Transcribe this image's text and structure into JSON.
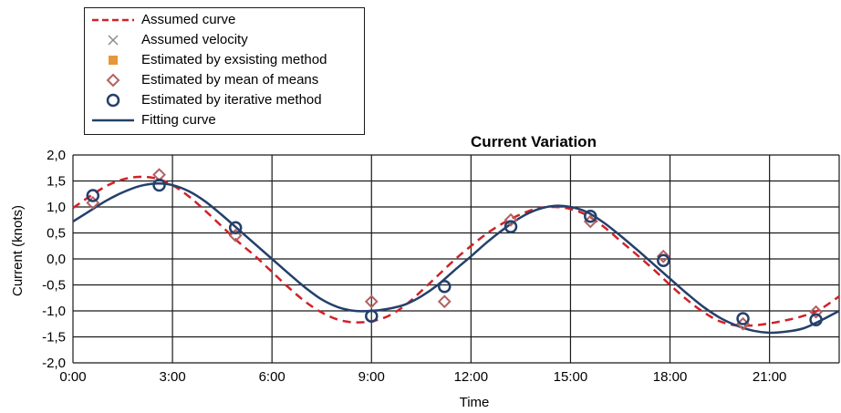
{
  "legend": {
    "items": [
      {
        "key": "assumed_curve",
        "label": "Assumed curve"
      },
      {
        "key": "assumed_velocity",
        "label": "Assumed velocity"
      },
      {
        "key": "existing",
        "label": "Estimated by exsisting method"
      },
      {
        "key": "mean",
        "label": "Estimated by mean of means"
      },
      {
        "key": "iterative",
        "label": "Estimated by iterative method"
      },
      {
        "key": "fitting",
        "label": "Fitting curve"
      }
    ]
  },
  "colors": {
    "assumed_curve": "#d0222a",
    "assumed_velocity": "#8a8a8a",
    "existing": "#e8963a",
    "mean": "#b56060",
    "iterative": "#24406b",
    "fitting": "#24406b",
    "grid": "#1a1a1a"
  },
  "chart_data": {
    "type": "line",
    "title": "Current Variation",
    "xlabel": "Time",
    "ylabel": "Current (knots)",
    "xlim": [
      0,
      23.1
    ],
    "ylim": [
      -2.0,
      2.0
    ],
    "x_ticks": [
      0,
      3,
      6,
      9,
      12,
      15,
      18,
      21
    ],
    "x_tick_labels": [
      "0:00",
      "3:00",
      "6:00",
      "9:00",
      "12:00",
      "15:00",
      "18:00",
      "21:00"
    ],
    "y_ticks": [
      2.0,
      1.5,
      1.0,
      0.5,
      0.0,
      -0.5,
      -1.0,
      -1.5,
      -2.0
    ],
    "y_tick_labels": [
      "2,0",
      "1,5",
      "1,0",
      "0,5",
      "0,0",
      "-0,5",
      "-1,0",
      "-1,5",
      "-2,0"
    ],
    "grid": true,
    "legend_position": "top-left, outside plot",
    "series": [
      {
        "name": "Assumed curve",
        "style": "dashed",
        "x": [
          0,
          0.5,
          1,
          1.5,
          2,
          2.5,
          3,
          3.5,
          4,
          4.5,
          5,
          5.5,
          6,
          6.5,
          7,
          7.5,
          8,
          8.5,
          9,
          9.5,
          10,
          10.5,
          11,
          11.5,
          12,
          12.5,
          13,
          13.5,
          14,
          14.5,
          15,
          15.5,
          16,
          16.5,
          17,
          17.5,
          18,
          18.5,
          19,
          19.5,
          20,
          20.5,
          21,
          21.5,
          22,
          22.5,
          23.1
        ],
        "y": [
          0.98,
          1.2,
          1.4,
          1.53,
          1.58,
          1.55,
          1.42,
          1.2,
          0.92,
          0.62,
          0.32,
          0.05,
          -0.25,
          -0.55,
          -0.82,
          -1.03,
          -1.17,
          -1.22,
          -1.2,
          -1.1,
          -0.9,
          -0.62,
          -0.32,
          -0.02,
          0.25,
          0.5,
          0.7,
          0.86,
          0.97,
          1.0,
          0.96,
          0.84,
          0.62,
          0.35,
          0.08,
          -0.2,
          -0.5,
          -0.78,
          -1.02,
          -1.2,
          -1.28,
          -1.28,
          -1.24,
          -1.18,
          -1.1,
          -0.98,
          -0.72
        ]
      },
      {
        "name": "Fitting curve",
        "style": "solid",
        "x": [
          0,
          0.5,
          1,
          1.5,
          2,
          2.5,
          3,
          3.5,
          4,
          4.5,
          5,
          5.5,
          6,
          6.5,
          7,
          7.5,
          8,
          8.5,
          9,
          9.5,
          10,
          10.5,
          11,
          11.5,
          12,
          12.5,
          13,
          13.5,
          14,
          14.5,
          15,
          15.5,
          16,
          16.5,
          17,
          17.5,
          18,
          18.5,
          19,
          19.5,
          20,
          20.5,
          21,
          21.5,
          22,
          22.5,
          23.1
        ],
        "y": [
          0.72,
          0.92,
          1.12,
          1.28,
          1.4,
          1.45,
          1.42,
          1.3,
          1.1,
          0.84,
          0.56,
          0.28,
          0.0,
          -0.28,
          -0.55,
          -0.78,
          -0.93,
          -1.0,
          -1.0,
          -0.96,
          -0.88,
          -0.72,
          -0.5,
          -0.22,
          0.05,
          0.33,
          0.58,
          0.8,
          0.95,
          1.02,
          1.0,
          0.9,
          0.7,
          0.45,
          0.18,
          -0.1,
          -0.38,
          -0.66,
          -0.92,
          -1.13,
          -1.28,
          -1.38,
          -1.42,
          -1.4,
          -1.34,
          -1.2,
          -1.0
        ]
      },
      {
        "name": "Estimated by mean of means",
        "marker": "diamond",
        "x": [
          0.6,
          2.6,
          4.9,
          9.0,
          11.2,
          13.2,
          15.6,
          17.8,
          20.2,
          22.4
        ],
        "y": [
          1.08,
          1.62,
          0.45,
          -0.82,
          -0.82,
          0.75,
          0.72,
          0.05,
          -1.25,
          -1.02
        ]
      },
      {
        "name": "Estimated by iterative method",
        "marker": "circle",
        "x": [
          0.6,
          2.6,
          4.9,
          9.0,
          11.2,
          13.2,
          15.6,
          17.8,
          20.2,
          22.4
        ],
        "y": [
          1.22,
          1.42,
          0.6,
          -1.1,
          -0.53,
          0.62,
          0.82,
          -0.03,
          -1.15,
          -1.17
        ]
      }
    ]
  }
}
